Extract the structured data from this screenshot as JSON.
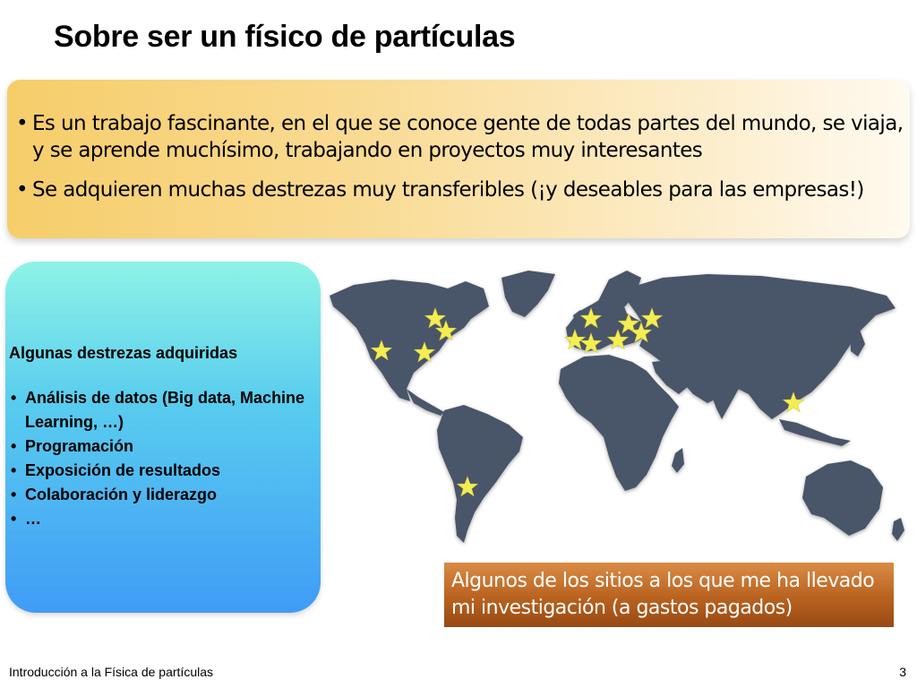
{
  "slide": {
    "title": "Sobre ser un físico de partículas",
    "top_bullets": [
      "Es un trabajo fascinante, en el que se conoce gente de todas partes del mundo, se viaja, y se aprende muchísimo, trabajando en proyectos muy interesantes",
      "Se adquieren muchas destrezas muy transferibles (¡y deseables para las empresas!)"
    ],
    "skills_heading": "Algunas destrezas adquiridas",
    "skills": [
      "Análisis de datos (Big data, Machine Learning, …)",
      "Programación",
      "Exposición de resultados",
      "Colaboración y liderazgo",
      "…"
    ],
    "map_caption": "Algunos de los sitios a los que me ha llevado mi investigación (a gastos pagados)",
    "footer_left": "Introducción a la Física de partículas",
    "page_number": "3"
  },
  "colors": {
    "land": "#4a5468",
    "star": "#f3ee52",
    "caption_bg": "#b9621f"
  },
  "map_icon": "world-map",
  "marker_icon": "star-icon"
}
